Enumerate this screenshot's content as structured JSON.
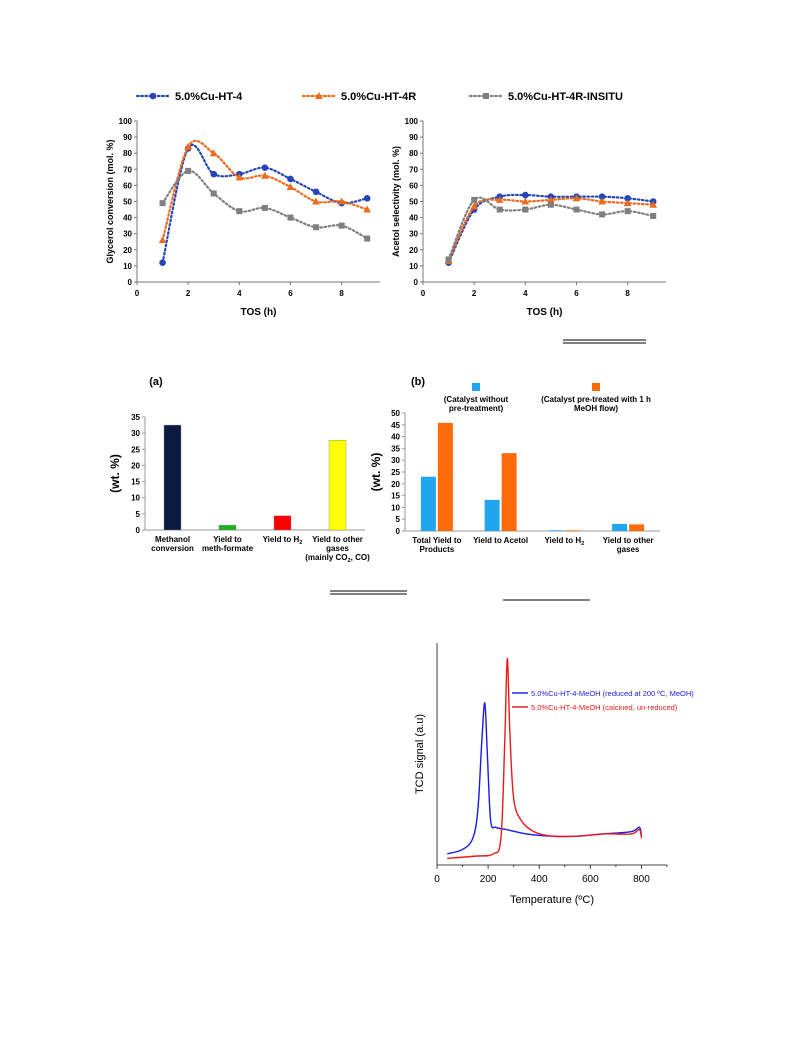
{
  "chart_data": [
    {
      "id": "glycerol",
      "type": "line",
      "xlabel": "TOS (h)",
      "ylabel": "Glycerol conversion  (mol. %)",
      "xlim": [
        0,
        9.5
      ],
      "ylim": [
        0,
        100
      ],
      "xticks": [
        0,
        2,
        4,
        6,
        8
      ],
      "yticks": [
        0,
        10,
        20,
        30,
        40,
        50,
        60,
        70,
        80,
        90,
        100
      ],
      "legend_position": "top",
      "x": [
        1,
        2,
        3,
        4,
        5,
        6,
        7,
        8,
        9
      ],
      "series": [
        {
          "name": "5.0%Cu-HT-4",
          "color": "#2446b8",
          "marker": "circle",
          "values": [
            12,
            83,
            67,
            67,
            71,
            64,
            56,
            49,
            52
          ]
        },
        {
          "name": "5.0%Cu-HT-4R",
          "color": "#ee6a1c",
          "marker": "triangle",
          "values": [
            26,
            84,
            80,
            65,
            66,
            59,
            50,
            50,
            45
          ]
        },
        {
          "name": "5.0%Cu-HT-4R-INSITU",
          "color": "#7f7f7f",
          "marker": "square",
          "values": [
            49,
            69,
            55,
            44,
            46,
            40,
            34,
            35,
            27
          ]
        }
      ]
    },
    {
      "id": "acetol",
      "type": "line",
      "xlabel": "TOS (h)",
      "ylabel": "Acetol selectivity  (mol. %)",
      "xlim": [
        0,
        9.5
      ],
      "ylim": [
        0,
        100
      ],
      "xticks": [
        0,
        2,
        4,
        6,
        8
      ],
      "yticks": [
        0,
        10,
        20,
        30,
        40,
        50,
        60,
        70,
        80,
        90,
        100
      ],
      "x": [
        1,
        2,
        3,
        4,
        5,
        6,
        7,
        8,
        9
      ],
      "series": [
        {
          "name": "5.0%Cu-HT-4",
          "color": "#2446b8",
          "marker": "circle",
          "values": [
            12,
            45,
            53,
            54,
            53,
            53,
            53,
            52,
            50
          ]
        },
        {
          "name": "5.0%Cu-HT-4R",
          "color": "#ee6a1c",
          "marker": "triangle",
          "values": [
            13,
            47,
            51,
            50,
            51,
            52,
            50,
            49,
            48
          ]
        },
        {
          "name": "5.0%Cu-HT-4R-INSITU",
          "color": "#7f7f7f",
          "marker": "square",
          "values": [
            14,
            51,
            45,
            45,
            48,
            45,
            42,
            44,
            41
          ]
        }
      ]
    },
    {
      "id": "methanol",
      "type": "bar",
      "title": "(a)",
      "ylabel": "(wt. %)",
      "ylim": [
        0,
        35
      ],
      "yticks": [
        0,
        5,
        10,
        15,
        20,
        25,
        30,
        35
      ],
      "categories": [
        {
          "lines": [
            "Methanol",
            "conversion"
          ]
        },
        {
          "lines": [
            "Yield to",
            "meth-formate"
          ]
        },
        {
          "lines": [
            "Yield to H",
            "2"
          ],
          "sub": true
        },
        {
          "lines": [
            "Yield to other",
            "gases",
            "(mainly CO",
            "2",
            ", CO)"
          ],
          "sub2": true
        }
      ],
      "values": [
        32.5,
        1.5,
        4.4,
        27.8
      ],
      "colors": [
        "#0d1a40",
        "#18b418",
        "#ff0000",
        "#ffff00"
      ]
    },
    {
      "id": "pretreat",
      "type": "bar",
      "title": "(b)",
      "ylabel": "(wt. %)",
      "ylim": [
        0,
        50
      ],
      "yticks": [
        0,
        5,
        10,
        15,
        20,
        25,
        30,
        35,
        40,
        45,
        50
      ],
      "legend_position": "top",
      "categories": [
        {
          "lines": [
            "Total Yield to",
            "Products"
          ]
        },
        {
          "lines": [
            "Yield to Acetol"
          ]
        },
        {
          "lines": [
            "Yield to H",
            "2"
          ],
          "sub": true
        },
        {
          "lines": [
            "Yield to other",
            "gases"
          ]
        }
      ],
      "series": [
        {
          "name": "(Catalyst without pre-treatment)",
          "name_lines": [
            "(Catalyst without",
            "pre-treatment)"
          ],
          "color": "#1fa6ee",
          "values": [
            23,
            13.2,
            0.3,
            3
          ]
        },
        {
          "name": "(Catalyst pre-treated with 1 h MeOH flow)",
          "name_lines": [
            "(Catalyst pre-treated with 1 h",
            "MeOH flow)"
          ],
          "color": "#ff6a0a",
          "values": [
            45.8,
            33,
            0.3,
            2.8
          ]
        }
      ]
    },
    {
      "id": "tpr",
      "type": "line",
      "xlabel": "Temperature (ºC)",
      "ylabel": "TCD signal (a.u)",
      "xlim": [
        0,
        900
      ],
      "xticks": [
        0,
        200,
        400,
        600,
        800
      ],
      "y_ticklabels": false,
      "legend_position": "top-right",
      "series": [
        {
          "name": "5.0%Cu-HT-4-MeOH (reduced at 200 ºC, MeOH)",
          "color": "#1a1ae6",
          "points": [
            [
              40,
              0.05
            ],
            [
              100,
              0.07
            ],
            [
              140,
              0.12
            ],
            [
              160,
              0.25
            ],
            [
              175,
              0.55
            ],
            [
              187,
              0.73
            ],
            [
              197,
              0.5
            ],
            [
              210,
              0.2
            ],
            [
              230,
              0.17
            ],
            [
              270,
              0.16
            ],
            [
              350,
              0.14
            ],
            [
              450,
              0.13
            ],
            [
              550,
              0.13
            ],
            [
              650,
              0.14
            ],
            [
              760,
              0.15
            ],
            [
              790,
              0.17
            ],
            [
              798,
              0.15
            ],
            [
              800,
              0.13
            ]
          ]
        },
        {
          "name": "5.0%Cu-HT-4-MeOH (calcined, un-reduced)",
          "color": "#e81a1a",
          "points": [
            [
              40,
              0.03
            ],
            [
              150,
              0.04
            ],
            [
              220,
              0.05
            ],
            [
              250,
              0.12
            ],
            [
              265,
              0.55
            ],
            [
              275,
              0.93
            ],
            [
              285,
              0.6
            ],
            [
              300,
              0.3
            ],
            [
              330,
              0.2
            ],
            [
              380,
              0.15
            ],
            [
              450,
              0.13
            ],
            [
              550,
              0.13
            ],
            [
              650,
              0.14
            ],
            [
              760,
              0.14
            ],
            [
              790,
              0.16
            ],
            [
              798,
              0.14
            ],
            [
              800,
              0.12
            ]
          ]
        }
      ]
    }
  ]
}
